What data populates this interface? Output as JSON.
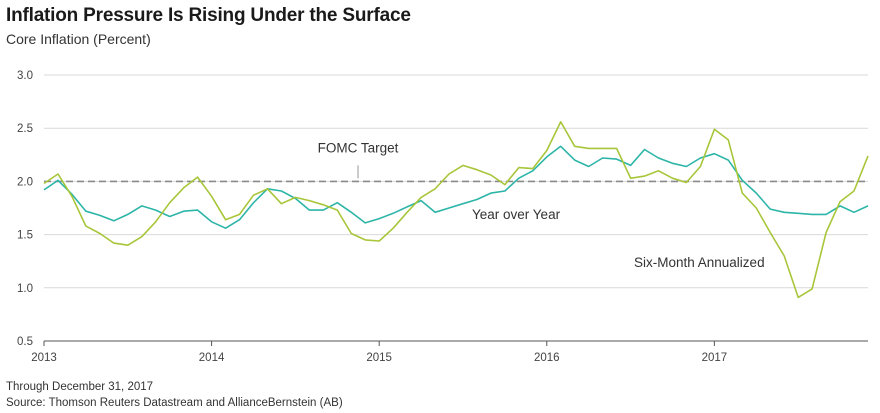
{
  "chart_data": {
    "type": "line",
    "title": "Inflation Pressure Is Rising Under the Surface",
    "subtitle": "Core Inflation (Percent)",
    "xlabel": "",
    "ylabel": "",
    "ylim": [
      0.5,
      3.0
    ],
    "yticks": [
      "3.0",
      "2.5",
      "2.0",
      "1.5",
      "1.0",
      "0.5"
    ],
    "ytick_values": [
      3.0,
      2.5,
      2.0,
      1.5,
      1.0,
      0.5
    ],
    "xlim": [
      0,
      59
    ],
    "xticks": [
      "2013",
      "2014",
      "2015",
      "2016",
      "2017"
    ],
    "xtick_values": [
      0,
      12,
      24,
      36,
      48
    ],
    "grid": true,
    "reference_line": {
      "label": "FOMC Target",
      "value": 2.0
    },
    "annotations": {
      "yoy": "Year over Year",
      "six": "Six-Month Annualized"
    },
    "colors": {
      "yoy": "#2db5a8",
      "six": "#a8c63a",
      "target": "#8a8a8a",
      "grid": "#d9d9d9"
    },
    "series": [
      {
        "name": "Year over Year",
        "key": "yoy",
        "values": [
          1.92,
          2.01,
          1.88,
          1.72,
          1.68,
          1.63,
          1.69,
          1.77,
          1.73,
          1.67,
          1.72,
          1.73,
          1.62,
          1.56,
          1.64,
          1.8,
          1.93,
          1.91,
          1.84,
          1.73,
          1.73,
          1.8,
          1.71,
          1.61,
          1.65,
          1.7,
          1.76,
          1.82,
          1.71,
          1.75,
          1.79,
          1.83,
          1.89,
          1.91,
          2.03,
          2.1,
          2.23,
          2.33,
          2.2,
          2.14,
          2.22,
          2.21,
          2.15,
          2.3,
          2.22,
          2.17,
          2.14,
          2.22,
          2.26,
          2.2,
          2.01,
          1.89,
          1.74,
          1.71,
          1.7,
          1.69,
          1.69,
          1.77,
          1.71,
          1.77
        ]
      },
      {
        "name": "Six-Month Annualized",
        "key": "six",
        "values": [
          1.98,
          2.07,
          1.86,
          1.58,
          1.51,
          1.42,
          1.4,
          1.48,
          1.62,
          1.8,
          1.94,
          2.04,
          1.86,
          1.64,
          1.69,
          1.87,
          1.93,
          1.79,
          1.85,
          1.82,
          1.78,
          1.73,
          1.51,
          1.45,
          1.44,
          1.56,
          1.71,
          1.85,
          1.93,
          2.07,
          2.15,
          2.11,
          2.06,
          1.97,
          2.13,
          2.12,
          2.29,
          2.56,
          2.33,
          2.31,
          2.31,
          2.31,
          2.03,
          2.05,
          2.1,
          2.03,
          1.99,
          2.14,
          2.49,
          2.39,
          1.89,
          1.75,
          1.52,
          1.3,
          0.91,
          0.99,
          1.52,
          1.81,
          1.91,
          2.24
        ]
      }
    ]
  },
  "footer": {
    "through": "Through December 31, 2017",
    "source": "Source: Thomson Reuters Datastream and AllianceBernstein (AB)"
  }
}
